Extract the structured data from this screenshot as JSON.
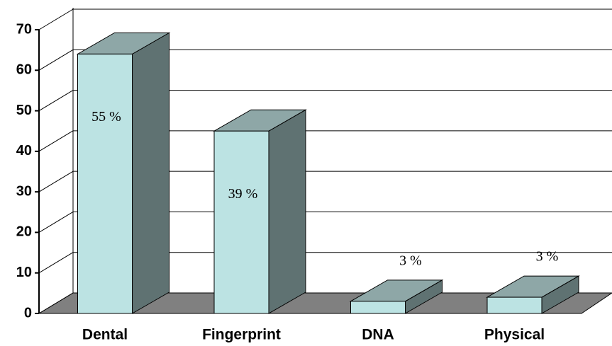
{
  "chart_data": {
    "type": "bar3d",
    "categories": [
      "Dental",
      "Fingerprint",
      "DNA",
      "Physical"
    ],
    "values": [
      64,
      45,
      3,
      4
    ],
    "percent_labels": [
      "55 %",
      "39 %",
      "3 %",
      "3 %"
    ],
    "ylim": [
      0,
      70
    ],
    "yticks": [
      0,
      10,
      20,
      30,
      40,
      50,
      60,
      70
    ],
    "grid": true,
    "colors": {
      "front": "#bce3e3",
      "top": "#8ea7a7",
      "side": "#5f7272",
      "floor": "#808080"
    }
  }
}
